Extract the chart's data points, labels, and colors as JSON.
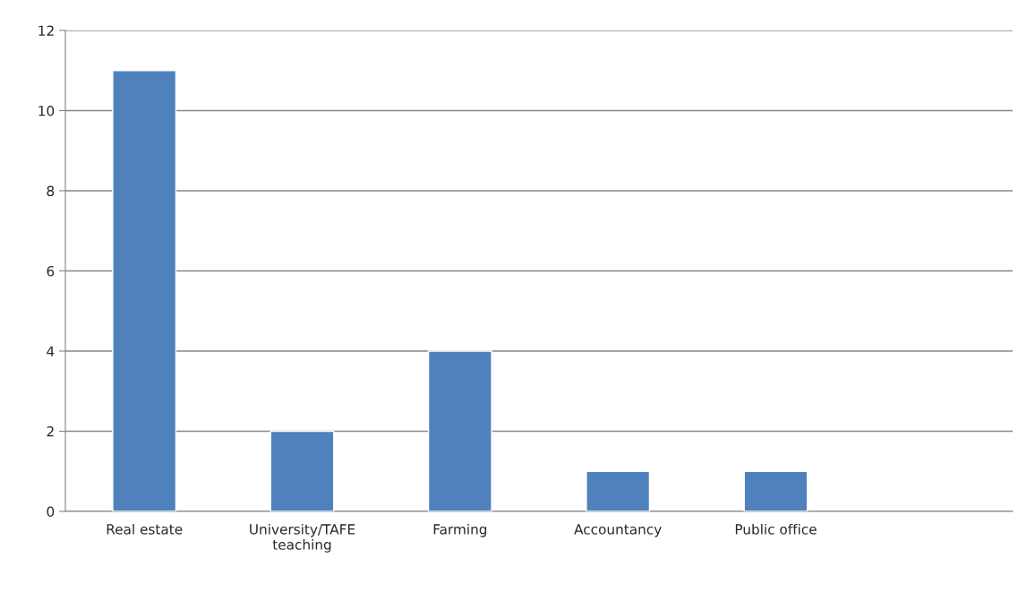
{
  "chart_data": {
    "type": "bar",
    "categories": [
      "Real estate",
      "University/TAFE teaching",
      "Farming",
      "Accountancy",
      "Public office",
      null
    ],
    "values": [
      11,
      2,
      4,
      1,
      1,
      null
    ],
    "color": "#4f81bd",
    "ylim": [
      0,
      12
    ],
    "yticks": [
      0,
      2,
      4,
      6,
      8,
      10,
      12
    ],
    "grid": "y"
  }
}
